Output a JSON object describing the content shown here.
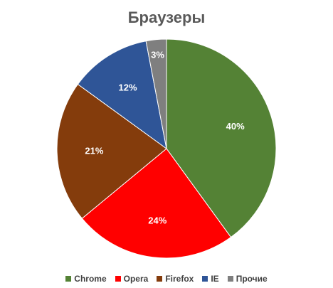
{
  "chart_data": {
    "type": "pie",
    "title": "Браузеры",
    "categories": [
      "Chrome",
      "Opera",
      "Firefox",
      "IE",
      "Прочие"
    ],
    "values": [
      40,
      24,
      21,
      12,
      3
    ],
    "labels": [
      "40%",
      "24%",
      "21%",
      "12%",
      "3%"
    ],
    "colors": [
      "#548235",
      "#FF0000",
      "#843C0C",
      "#2F5597",
      "#7F7F7F"
    ],
    "start_angle_deg": 0,
    "direction": "clockwise",
    "legend_position": "bottom"
  }
}
